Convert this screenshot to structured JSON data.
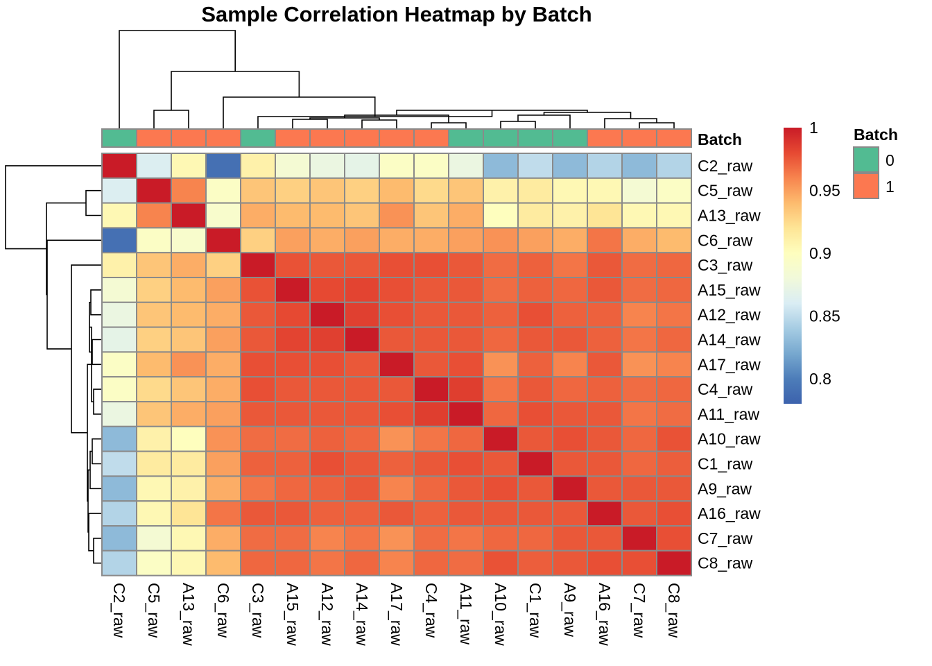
{
  "chart_data": {
    "type": "heatmap",
    "title": "Sample Correlation Heatmap by Batch",
    "samples": [
      "C2_raw",
      "C5_raw",
      "A13_raw",
      "C6_raw",
      "C3_raw",
      "A15_raw",
      "A12_raw",
      "A14_raw",
      "A17_raw",
      "C4_raw",
      "A11_raw",
      "A10_raw",
      "C1_raw",
      "A9_raw",
      "A16_raw",
      "C7_raw",
      "C8_raw"
    ],
    "batch": [
      0,
      1,
      1,
      1,
      0,
      1,
      1,
      1,
      1,
      1,
      0,
      0,
      0,
      0,
      1,
      1,
      1
    ],
    "annotation_title": "Batch",
    "annotation_levels": [
      {
        "label": "0",
        "color": "#52BB92"
      },
      {
        "label": "1",
        "color": "#FC7850"
      }
    ],
    "colorbar": {
      "range": [
        0.78,
        1.0
      ],
      "ticks": [
        0.8,
        0.85,
        0.9,
        0.95,
        1
      ],
      "tick_labels": [
        "0.8",
        "0.85",
        "0.9",
        "0.95",
        "1"
      ],
      "palette": [
        "#3C62AD",
        "#4D7DB9",
        "#77A8CF",
        "#A6CCE3",
        "#DAEDF4",
        "#F1F9DA",
        "#FEFEBE",
        "#FEE596",
        "#FDBB6E",
        "#F7844E",
        "#E64932",
        "#C91B27"
      ]
    },
    "matrix": [
      [
        1.0,
        0.862,
        0.905,
        0.79,
        0.91,
        0.885,
        0.875,
        0.87,
        0.895,
        0.895,
        0.875,
        0.83,
        0.85,
        0.83,
        0.845,
        0.83,
        0.845
      ],
      [
        0.862,
        1.0,
        0.96,
        0.895,
        0.935,
        0.93,
        0.935,
        0.93,
        0.94,
        0.925,
        0.935,
        0.91,
        0.915,
        0.905,
        0.905,
        0.885,
        0.895
      ],
      [
        0.905,
        0.96,
        1.0,
        0.89,
        0.945,
        0.94,
        0.94,
        0.935,
        0.955,
        0.935,
        0.945,
        0.9,
        0.915,
        0.91,
        0.92,
        0.905,
        0.905
      ],
      [
        0.79,
        0.895,
        0.89,
        1.0,
        0.93,
        0.95,
        0.945,
        0.95,
        0.945,
        0.945,
        0.95,
        0.955,
        0.95,
        0.945,
        0.965,
        0.945,
        0.94
      ],
      [
        0.91,
        0.935,
        0.945,
        0.93,
        1.0,
        0.977,
        0.975,
        0.975,
        0.978,
        0.978,
        0.975,
        0.968,
        0.972,
        0.965,
        0.975,
        0.968,
        0.97
      ],
      [
        0.885,
        0.93,
        0.94,
        0.95,
        0.977,
        1.0,
        0.98,
        0.982,
        0.978,
        0.975,
        0.975,
        0.968,
        0.972,
        0.97,
        0.975,
        0.968,
        0.97
      ],
      [
        0.875,
        0.935,
        0.94,
        0.945,
        0.975,
        0.98,
        1.0,
        0.984,
        0.978,
        0.975,
        0.975,
        0.972,
        0.978,
        0.972,
        0.972,
        0.96,
        0.965
      ],
      [
        0.87,
        0.93,
        0.935,
        0.95,
        0.975,
        0.982,
        0.984,
        1.0,
        0.975,
        0.975,
        0.975,
        0.97,
        0.975,
        0.975,
        0.972,
        0.965,
        0.97
      ],
      [
        0.895,
        0.94,
        0.955,
        0.945,
        0.978,
        0.978,
        0.978,
        0.975,
        1.0,
        0.975,
        0.978,
        0.955,
        0.972,
        0.96,
        0.975,
        0.955,
        0.96
      ],
      [
        0.895,
        0.925,
        0.935,
        0.945,
        0.978,
        0.975,
        0.975,
        0.975,
        0.975,
        1.0,
        0.985,
        0.965,
        0.975,
        0.97,
        0.972,
        0.968,
        0.97
      ],
      [
        0.875,
        0.935,
        0.945,
        0.95,
        0.975,
        0.975,
        0.975,
        0.975,
        0.978,
        0.985,
        1.0,
        0.97,
        0.978,
        0.975,
        0.975,
        0.965,
        0.968
      ],
      [
        0.83,
        0.91,
        0.9,
        0.955,
        0.968,
        0.968,
        0.972,
        0.97,
        0.955,
        0.965,
        0.97,
        1.0,
        0.975,
        0.978,
        0.975,
        0.97,
        0.977
      ],
      [
        0.85,
        0.915,
        0.915,
        0.95,
        0.972,
        0.972,
        0.978,
        0.975,
        0.972,
        0.975,
        0.978,
        0.975,
        1.0,
        0.975,
        0.975,
        0.97,
        0.973
      ],
      [
        0.83,
        0.905,
        0.91,
        0.945,
        0.965,
        0.97,
        0.972,
        0.975,
        0.96,
        0.97,
        0.975,
        0.978,
        0.975,
        1.0,
        0.975,
        0.975,
        0.975
      ],
      [
        0.845,
        0.905,
        0.92,
        0.965,
        0.975,
        0.975,
        0.972,
        0.972,
        0.975,
        0.972,
        0.975,
        0.975,
        0.975,
        0.975,
        1.0,
        0.975,
        0.978
      ],
      [
        0.83,
        0.885,
        0.905,
        0.945,
        0.968,
        0.968,
        0.96,
        0.965,
        0.955,
        0.968,
        0.965,
        0.97,
        0.97,
        0.975,
        0.975,
        1.0,
        0.978
      ],
      [
        0.845,
        0.895,
        0.905,
        0.94,
        0.97,
        0.97,
        0.965,
        0.97,
        0.96,
        0.97,
        0.968,
        0.977,
        0.973,
        0.975,
        0.978,
        0.978,
        1.0
      ]
    ]
  }
}
